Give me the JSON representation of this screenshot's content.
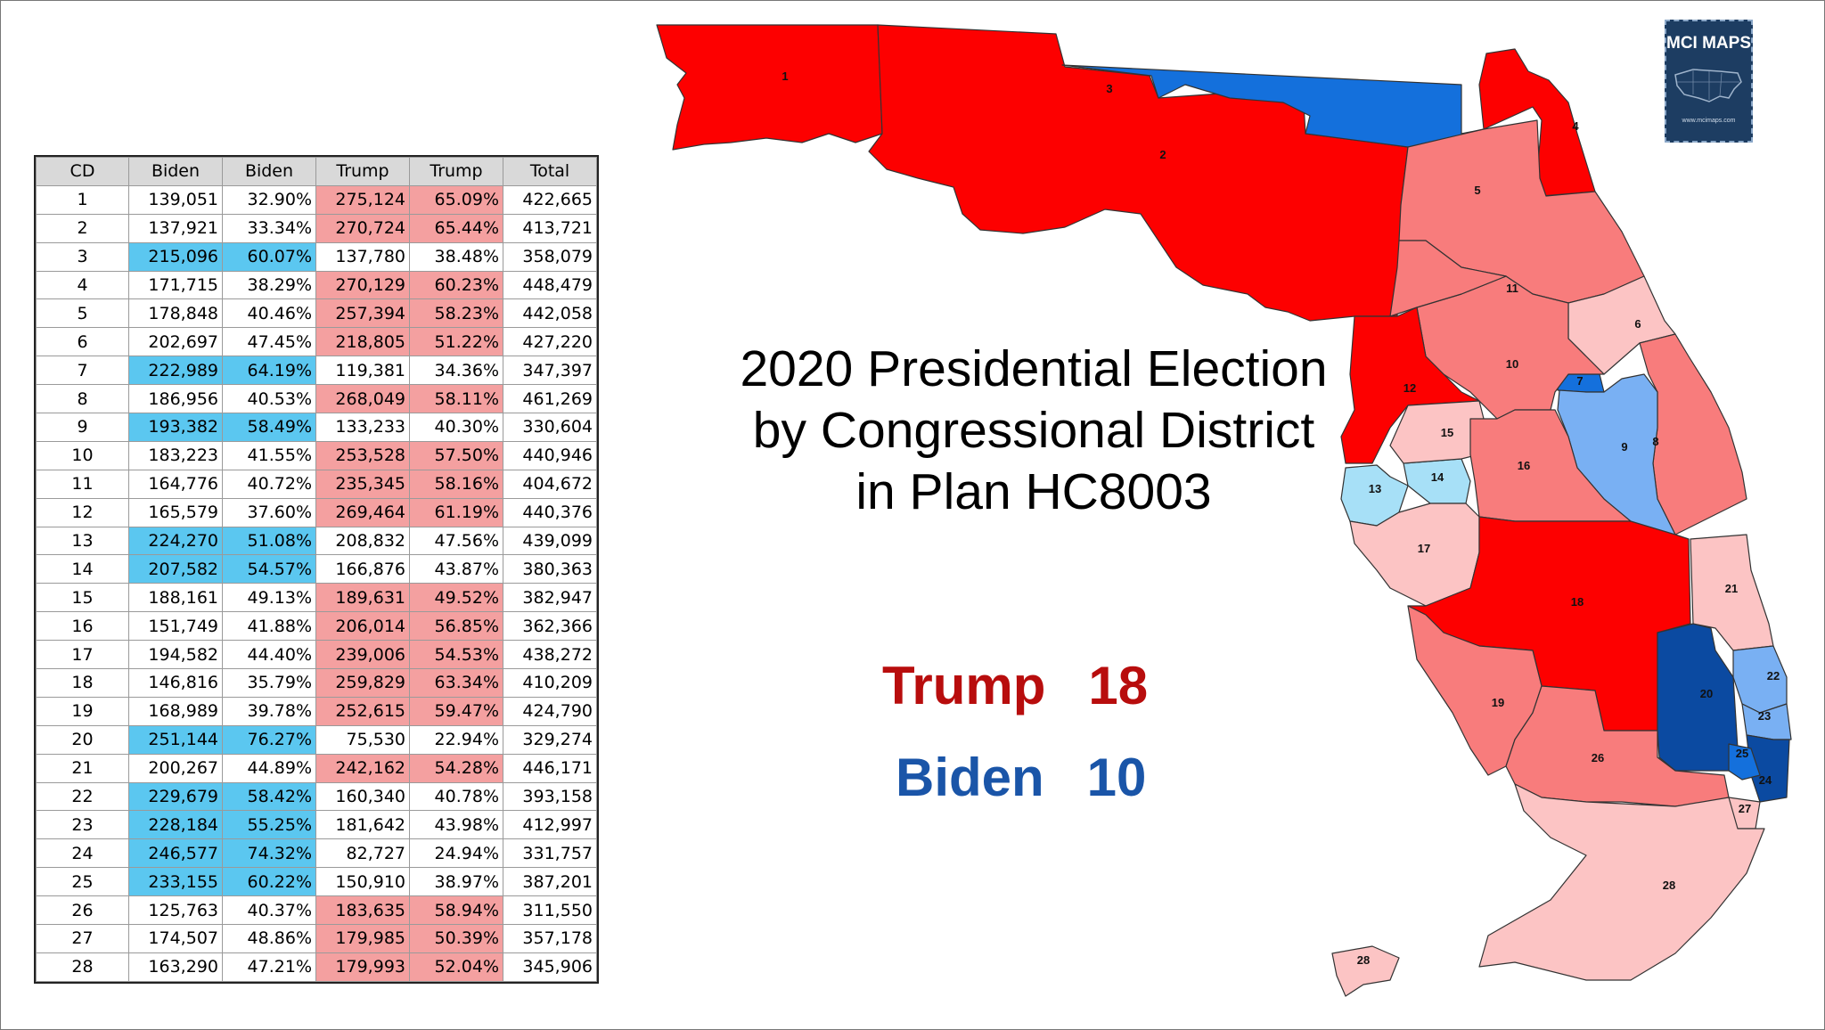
{
  "title_lines": [
    "2020 Presidential Election",
    "by Congressional District",
    "in Plan HC8003"
  ],
  "tally": {
    "trump_label": "Trump",
    "trump_count": "18",
    "biden_label": "Biden",
    "biden_count": "10"
  },
  "logo": {
    "text": "MCI MAPS",
    "sub": "www.mcimaps.com"
  },
  "colors": {
    "safe_r": "#fd0000",
    "likely_r": "#f87c7c",
    "lean_r": "#fcc4c4",
    "lean_d": "#a7e0f7",
    "likely_d": "#79b0f3",
    "safe_d": "#1470dc",
    "solid_d": "#0b4aa1",
    "table_biden": "#5bc7f0",
    "table_trump": "#f4a0a0"
  },
  "table": {
    "headers": [
      "CD",
      "Biden",
      "Biden",
      "Trump",
      "Trump",
      "Total"
    ],
    "rows": [
      {
        "cd": "1",
        "biden": "139,051",
        "biden_pct": "32.90%",
        "trump": "275,124",
        "trump_pct": "65.09%",
        "total": "422,665",
        "winner": "R"
      },
      {
        "cd": "2",
        "biden": "137,921",
        "biden_pct": "33.34%",
        "trump": "270,724",
        "trump_pct": "65.44%",
        "total": "413,721",
        "winner": "R"
      },
      {
        "cd": "3",
        "biden": "215,096",
        "biden_pct": "60.07%",
        "trump": "137,780",
        "trump_pct": "38.48%",
        "total": "358,079",
        "winner": "D"
      },
      {
        "cd": "4",
        "biden": "171,715",
        "biden_pct": "38.29%",
        "trump": "270,129",
        "trump_pct": "60.23%",
        "total": "448,479",
        "winner": "R"
      },
      {
        "cd": "5",
        "biden": "178,848",
        "biden_pct": "40.46%",
        "trump": "257,394",
        "trump_pct": "58.23%",
        "total": "442,058",
        "winner": "R"
      },
      {
        "cd": "6",
        "biden": "202,697",
        "biden_pct": "47.45%",
        "trump": "218,805",
        "trump_pct": "51.22%",
        "total": "427,220",
        "winner": "R"
      },
      {
        "cd": "7",
        "biden": "222,989",
        "biden_pct": "64.19%",
        "trump": "119,381",
        "trump_pct": "34.36%",
        "total": "347,397",
        "winner": "D"
      },
      {
        "cd": "8",
        "biden": "186,956",
        "biden_pct": "40.53%",
        "trump": "268,049",
        "trump_pct": "58.11%",
        "total": "461,269",
        "winner": "R"
      },
      {
        "cd": "9",
        "biden": "193,382",
        "biden_pct": "58.49%",
        "trump": "133,233",
        "trump_pct": "40.30%",
        "total": "330,604",
        "winner": "D"
      },
      {
        "cd": "10",
        "biden": "183,223",
        "biden_pct": "41.55%",
        "trump": "253,528",
        "trump_pct": "57.50%",
        "total": "440,946",
        "winner": "R"
      },
      {
        "cd": "11",
        "biden": "164,776",
        "biden_pct": "40.72%",
        "trump": "235,345",
        "trump_pct": "58.16%",
        "total": "404,672",
        "winner": "R"
      },
      {
        "cd": "12",
        "biden": "165,579",
        "biden_pct": "37.60%",
        "trump": "269,464",
        "trump_pct": "61.19%",
        "total": "440,376",
        "winner": "R"
      },
      {
        "cd": "13",
        "biden": "224,270",
        "biden_pct": "51.08%",
        "trump": "208,832",
        "trump_pct": "47.56%",
        "total": "439,099",
        "winner": "D"
      },
      {
        "cd": "14",
        "biden": "207,582",
        "biden_pct": "54.57%",
        "trump": "166,876",
        "trump_pct": "43.87%",
        "total": "380,363",
        "winner": "D"
      },
      {
        "cd": "15",
        "biden": "188,161",
        "biden_pct": "49.13%",
        "trump": "189,631",
        "trump_pct": "49.52%",
        "total": "382,947",
        "winner": "R"
      },
      {
        "cd": "16",
        "biden": "151,749",
        "biden_pct": "41.88%",
        "trump": "206,014",
        "trump_pct": "56.85%",
        "total": "362,366",
        "winner": "R"
      },
      {
        "cd": "17",
        "biden": "194,582",
        "biden_pct": "44.40%",
        "trump": "239,006",
        "trump_pct": "54.53%",
        "total": "438,272",
        "winner": "R"
      },
      {
        "cd": "18",
        "biden": "146,816",
        "biden_pct": "35.79%",
        "trump": "259,829",
        "trump_pct": "63.34%",
        "total": "410,209",
        "winner": "R"
      },
      {
        "cd": "19",
        "biden": "168,989",
        "biden_pct": "39.78%",
        "trump": "252,615",
        "trump_pct": "59.47%",
        "total": "424,790",
        "winner": "R"
      },
      {
        "cd": "20",
        "biden": "251,144",
        "biden_pct": "76.27%",
        "trump": "75,530",
        "trump_pct": "22.94%",
        "total": "329,274",
        "winner": "D"
      },
      {
        "cd": "21",
        "biden": "200,267",
        "biden_pct": "44.89%",
        "trump": "242,162",
        "trump_pct": "54.28%",
        "total": "446,171",
        "winner": "R"
      },
      {
        "cd": "22",
        "biden": "229,679",
        "biden_pct": "58.42%",
        "trump": "160,340",
        "trump_pct": "40.78%",
        "total": "393,158",
        "winner": "D"
      },
      {
        "cd": "23",
        "biden": "228,184",
        "biden_pct": "55.25%",
        "trump": "181,642",
        "trump_pct": "43.98%",
        "total": "412,997",
        "winner": "D"
      },
      {
        "cd": "24",
        "biden": "246,577",
        "biden_pct": "74.32%",
        "trump": "82,727",
        "trump_pct": "24.94%",
        "total": "331,757",
        "winner": "D"
      },
      {
        "cd": "25",
        "biden": "233,155",
        "biden_pct": "60.22%",
        "trump": "150,910",
        "trump_pct": "38.97%",
        "total": "387,201",
        "winner": "D"
      },
      {
        "cd": "26",
        "biden": "125,763",
        "biden_pct": "40.37%",
        "trump": "183,635",
        "trump_pct": "58.94%",
        "total": "311,550",
        "winner": "R"
      },
      {
        "cd": "27",
        "biden": "174,507",
        "biden_pct": "48.86%",
        "trump": "179,985",
        "trump_pct": "50.39%",
        "total": "357,178",
        "winner": "R"
      },
      {
        "cd": "28",
        "biden": "163,290",
        "biden_pct": "47.21%",
        "trump": "179,993",
        "trump_pct": "52.04%",
        "total": "345,906",
        "winner": "R"
      }
    ]
  },
  "map": {
    "districts": [
      {
        "id": "1",
        "label": "1",
        "shade": "safe_r"
      },
      {
        "id": "2",
        "label": "2",
        "shade": "safe_r"
      },
      {
        "id": "3",
        "label": "3",
        "shade": "safe_d"
      },
      {
        "id": "4",
        "label": "4",
        "shade": "safe_r"
      },
      {
        "id": "5",
        "label": "5",
        "shade": "likely_r"
      },
      {
        "id": "6",
        "label": "6",
        "shade": "lean_r"
      },
      {
        "id": "7",
        "label": "7",
        "shade": "safe_d"
      },
      {
        "id": "8",
        "label": "8",
        "shade": "likely_r"
      },
      {
        "id": "9",
        "label": "9",
        "shade": "likely_d"
      },
      {
        "id": "10",
        "label": "10",
        "shade": "likely_r"
      },
      {
        "id": "11",
        "label": "11",
        "shade": "likely_r"
      },
      {
        "id": "12",
        "label": "12",
        "shade": "safe_r"
      },
      {
        "id": "13",
        "label": "13",
        "shade": "lean_d"
      },
      {
        "id": "14",
        "label": "14",
        "shade": "lean_d"
      },
      {
        "id": "15",
        "label": "15",
        "shade": "lean_r"
      },
      {
        "id": "16",
        "label": "16",
        "shade": "likely_r"
      },
      {
        "id": "17",
        "label": "17",
        "shade": "lean_r"
      },
      {
        "id": "18",
        "label": "18",
        "shade": "safe_r"
      },
      {
        "id": "19",
        "label": "19",
        "shade": "likely_r"
      },
      {
        "id": "20",
        "label": "20",
        "shade": "solid_d"
      },
      {
        "id": "21",
        "label": "21",
        "shade": "lean_r"
      },
      {
        "id": "22",
        "label": "22",
        "shade": "likely_d"
      },
      {
        "id": "23",
        "label": "23",
        "shade": "likely_d"
      },
      {
        "id": "24",
        "label": "24",
        "shade": "solid_d"
      },
      {
        "id": "25",
        "label": "25",
        "shade": "safe_d"
      },
      {
        "id": "26",
        "label": "26",
        "shade": "likely_r"
      },
      {
        "id": "27",
        "label": "27",
        "shade": "lean_r"
      },
      {
        "id": "28",
        "label": "28",
        "shade": "lean_r"
      }
    ]
  }
}
